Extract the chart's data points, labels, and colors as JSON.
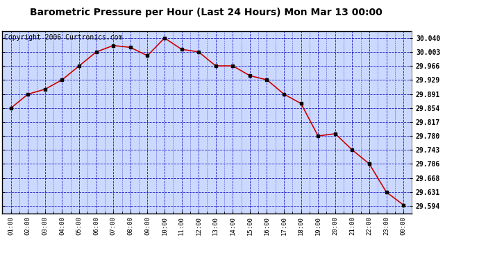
{
  "title": "Barometric Pressure per Hour (Last 24 Hours) Mon Mar 13 00:00",
  "copyright": "Copyright 2006 Curtronics.com",
  "x_labels": [
    "01:00",
    "02:00",
    "03:00",
    "04:00",
    "05:00",
    "06:00",
    "07:00",
    "08:00",
    "09:00",
    "10:00",
    "11:00",
    "12:00",
    "13:00",
    "14:00",
    "15:00",
    "16:00",
    "17:00",
    "18:00",
    "19:00",
    "20:00",
    "21:00",
    "22:00",
    "23:00",
    "00:00"
  ],
  "y_values": [
    29.854,
    29.891,
    29.904,
    29.929,
    29.966,
    30.003,
    30.02,
    30.015,
    29.993,
    30.04,
    30.01,
    30.003,
    29.966,
    29.966,
    29.94,
    29.929,
    29.891,
    29.866,
    29.78,
    29.786,
    29.743,
    29.706,
    29.631,
    29.597
  ],
  "y_ticks": [
    29.594,
    29.631,
    29.668,
    29.706,
    29.743,
    29.78,
    29.817,
    29.854,
    29.891,
    29.929,
    29.966,
    30.003,
    30.04
  ],
  "y_min": 29.575,
  "y_max": 30.058,
  "line_color": "#cc0000",
  "marker_color": "#000000",
  "background_color": "#ccd9ff",
  "grid_color": "#0000bb",
  "border_color": "#000000",
  "title_fontsize": 10,
  "copyright_fontsize": 7
}
